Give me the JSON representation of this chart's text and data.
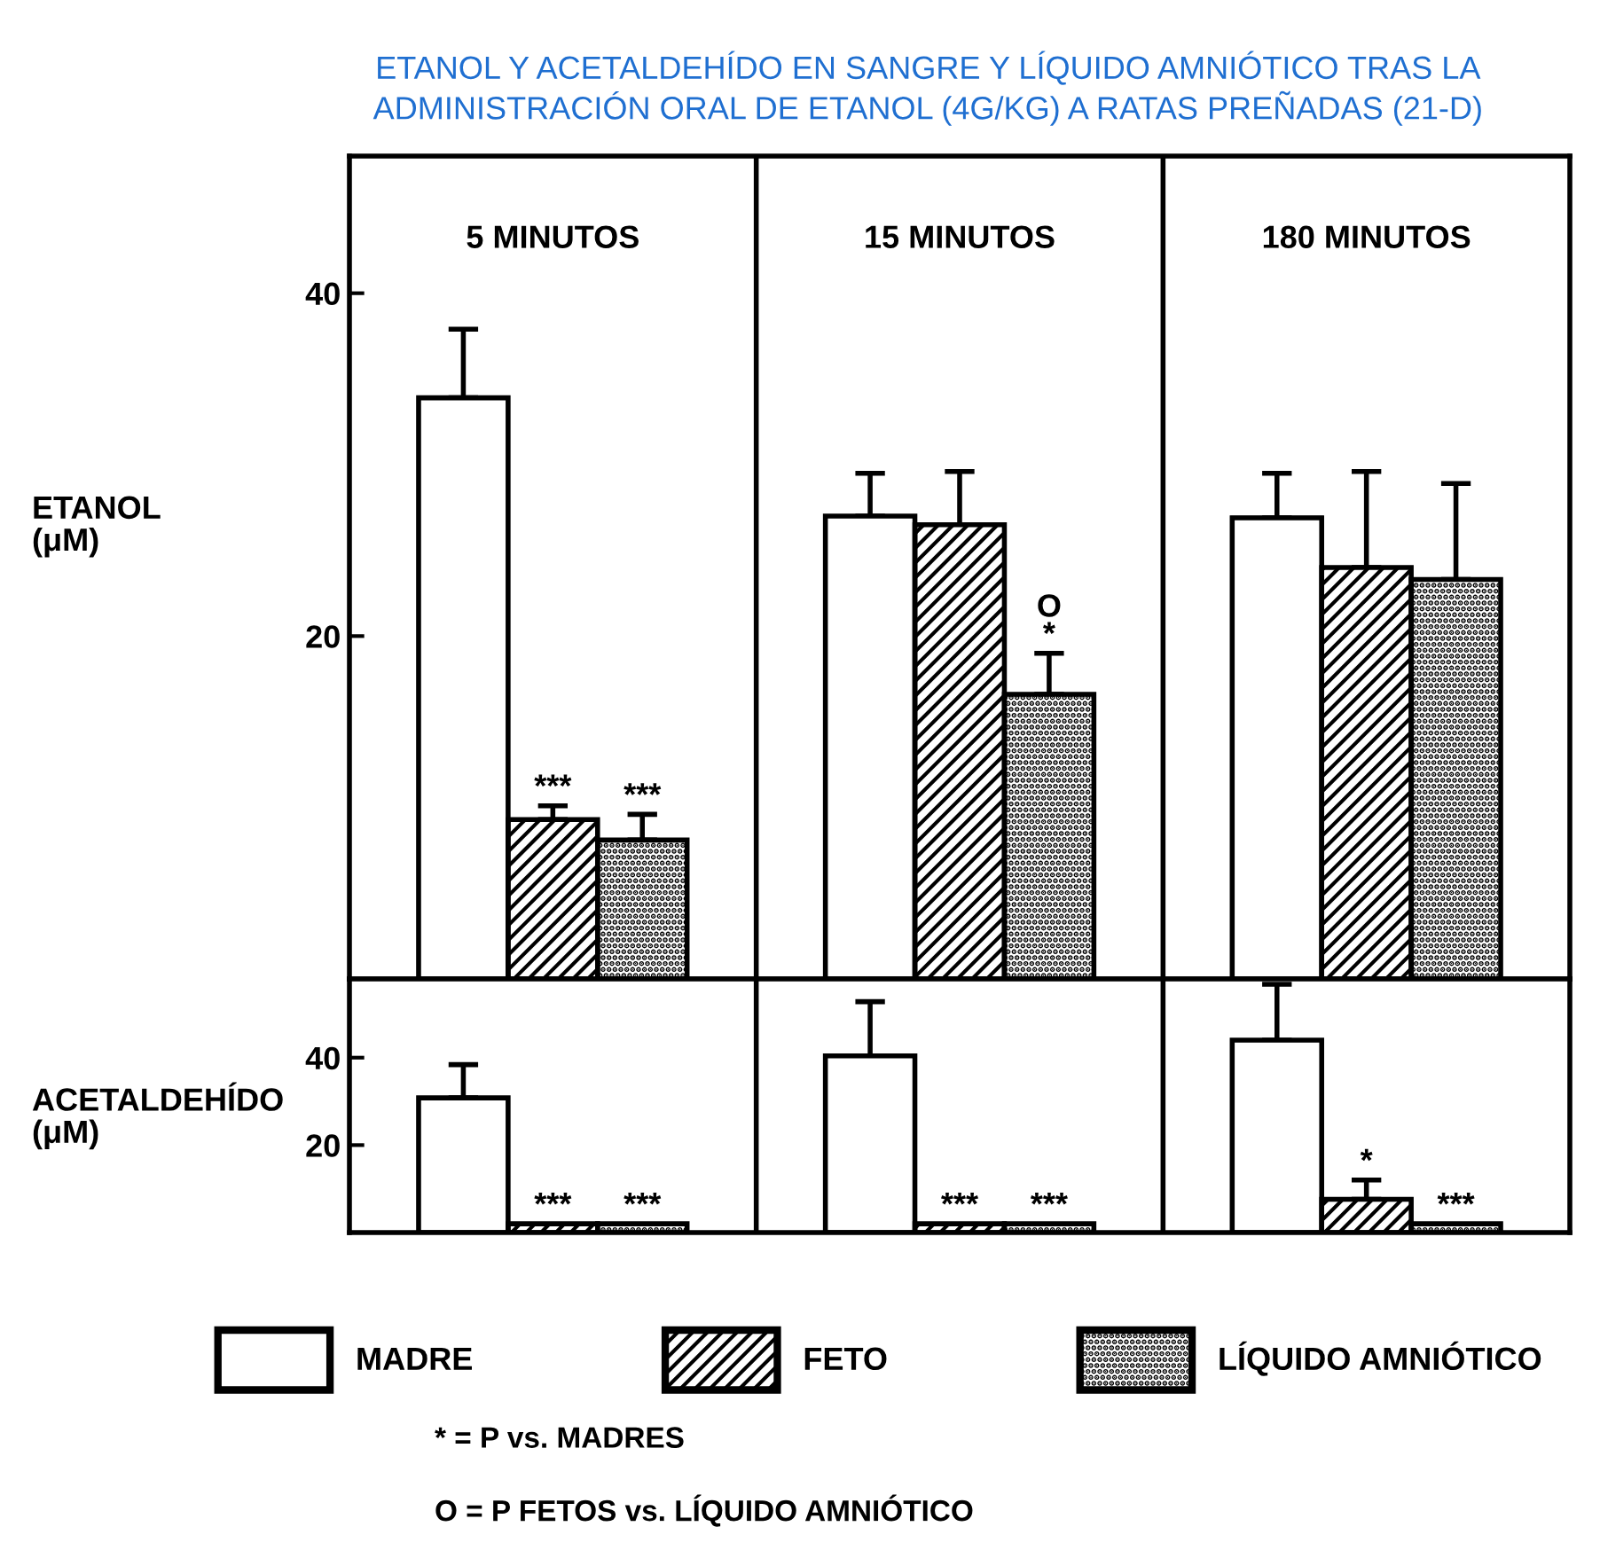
{
  "chart_data": [
    {
      "type": "bar",
      "ylabel": "ETANOL\n(μM)",
      "categories": [
        "5 MINUTOS",
        "15 MINUTOS",
        "180 MINUTOS"
      ],
      "ylim": [
        0,
        48
      ],
      "yticks": [
        20,
        40
      ],
      "legend": "bottom",
      "annotations": [
        "ETANOL Y ACETALDEHÍDO EN SANGRE Y LÍQUIDO AMNIÓTICO TRAS LA\nADMINISTRACIÓN ORAL DE ETANOL (4G/KG) A RATAS PREÑADAS (21-D)",
        "* = P vs. MADRES",
        "O = P FETOS vs. LÍQUIDO AMNIÓTICO"
      ],
      "series": [
        {
          "name": "MADRE",
          "color": "#ffffff",
          "values": [
            33.9,
            27.0,
            26.9
          ],
          "errors": [
            [
              33.9,
              37.9
            ],
            [
              27.0,
              29.5
            ],
            [
              26.9,
              29.5
            ]
          ]
        },
        {
          "name": "FETO",
          "color": "#000000",
          "values": [
            9.3,
            26.5,
            24.0
          ],
          "errors": [
            [
              9.3,
              10.1
            ],
            [
              26.5,
              29.6
            ],
            [
              24.0,
              29.6
            ]
          ],
          "value_labels": [
            "***",
            null,
            null
          ]
        },
        {
          "name": "LÍQUIDO AMNIÓTICO",
          "color": "#000000",
          "values": [
            8.1,
            16.6,
            23.3
          ],
          "errors": [
            [
              8.1,
              9.6
            ],
            [
              16.6,
              19.0
            ],
            [
              23.3,
              28.9
            ]
          ],
          "value_labels": [
            "***",
            "O\n*",
            null
          ]
        }
      ]
    },
    {
      "type": "bar",
      "ylabel": "ACETALDEHÍDO\n(μM)",
      "categories": [
        null,
        null,
        null
      ],
      "ylim": [
        0,
        58
      ],
      "yticks": [
        20,
        40
      ],
      "tick_labels": "y",
      "series": [
        {
          "color": "#ffffff",
          "values": [
            30.8,
            40.4,
            44.0
          ],
          "errors": [
            [
              30.8,
              38.4
            ],
            [
              40.4,
              52.8
            ],
            [
              44.0,
              56.8
            ]
          ]
        },
        {
          "color": "#000000",
          "values": [
            2,
            2,
            7.6
          ],
          "errors": [
            null,
            null,
            [
              7.6,
              12.0
            ]
          ],
          "value_labels": [
            "***",
            "***",
            "*"
          ]
        },
        {
          "color": "#000000",
          "values": [
            2,
            2,
            2
          ],
          "value_labels": [
            "***",
            "***",
            "***"
          ]
        }
      ]
    }
  ]
}
